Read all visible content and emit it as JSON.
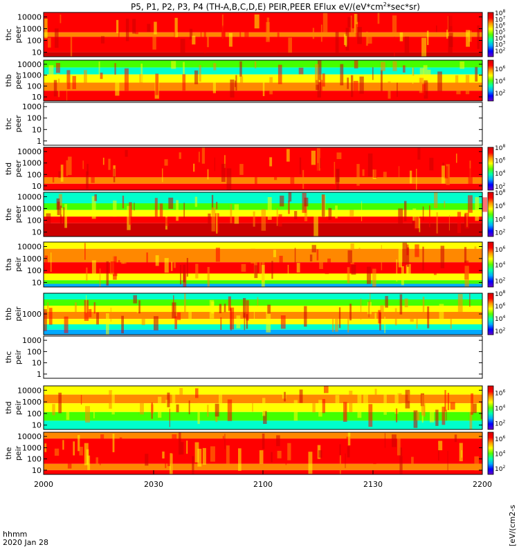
{
  "chart_data": {
    "type": "heatmap",
    "title": "P5, P1, P2, P3, P4 (TH-A,B,C,D,E) PEIR,PEER EFlux eV/(eV*cm^2*sec*sr)",
    "title_parts": [
      "P5, P1, P2, P3, P4 (TH-A,B,C,D,E) PEIR,PEER EFlux eV/(eV*cm",
      "2",
      "*sec*sr)"
    ],
    "x_ticks": [
      "2000",
      "2030",
      "2100",
      "2130",
      "2200"
    ],
    "x_label_line1": "hhmm",
    "x_label_line2": "2020 Jan 28",
    "colorbar_label": "[eV/(cm2-s",
    "colorbar_colors": [
      "#6a00c8",
      "#0000ff",
      "#00aaff",
      "#00ffaa",
      "#55ff00",
      "#ffff00",
      "#ff9900",
      "#ff0000",
      "#d40000"
    ],
    "panels": [
      {
        "label1": "thc",
        "label2": "peer",
        "yticks": [
          "10000",
          "1000",
          "100",
          "10"
        ],
        "empty": false,
        "colorbar": true,
        "cbar_ticks": [
          {
            "e": "8",
            "f": 0.0
          },
          {
            "e": "7",
            "f": 0.15
          },
          {
            "e": "6",
            "f": 0.29
          },
          {
            "e": "5",
            "f": 0.43
          },
          {
            "e": "4",
            "f": 0.57
          },
          {
            "e": "3",
            "f": 0.71
          },
          {
            "e": "2",
            "f": 0.86
          }
        ]
      },
      {
        "label1": "thb",
        "label2": "peer",
        "yticks": [
          "10000",
          "1000",
          "100",
          "10"
        ],
        "empty": false,
        "colorbar": true,
        "cbar_ticks": [
          {
            "e": "6",
            "f": 0.2
          },
          {
            "e": "4",
            "f": 0.5
          },
          {
            "e": "2",
            "f": 0.8
          }
        ]
      },
      {
        "label1": "thc",
        "label2": "peer",
        "yticks": [
          "1000",
          "100",
          "10",
          "1"
        ],
        "empty": true,
        "colorbar": false,
        "cbar_ticks": []
      },
      {
        "label1": "thd",
        "label2": "peer",
        "yticks": [
          "10000",
          "1000",
          "100",
          "10"
        ],
        "empty": false,
        "colorbar": true,
        "cbar_ticks": [
          {
            "e": "8",
            "f": 0.0
          },
          {
            "e": "6",
            "f": 0.3
          },
          {
            "e": "4",
            "f": 0.6
          },
          {
            "e": "2",
            "f": 0.9
          }
        ]
      },
      {
        "label1": "the",
        "label2": "peer",
        "yticks": [
          "10000",
          "1000",
          "100",
          "10"
        ],
        "empty": false,
        "colorbar": true,
        "cbar_ticks": [
          {
            "e": "8",
            "f": 0.0
          },
          {
            "e": "6",
            "f": 0.3
          },
          {
            "e": "4",
            "f": 0.6
          },
          {
            "e": "2",
            "f": 0.9
          }
        ]
      },
      {
        "label1": "tha",
        "label2": "peir",
        "yticks": [
          "10000",
          "1000",
          "100",
          "10"
        ],
        "empty": false,
        "colorbar": true,
        "cbar_ticks": [
          {
            "e": "6",
            "f": 0.15
          },
          {
            "e": "4",
            "f": 0.5
          },
          {
            "e": "2",
            "f": 0.85
          }
        ]
      },
      {
        "label1": "thb",
        "label2": "peir",
        "yticks": [
          "1000"
        ],
        "empty": false,
        "colorbar": true,
        "cbar_ticks": [
          {
            "e": "8",
            "f": 0.0
          },
          {
            "e": "6",
            "f": 0.3
          },
          {
            "e": "4",
            "f": 0.6
          },
          {
            "e": "2",
            "f": 0.9
          }
        ]
      },
      {
        "label1": "thc",
        "label2": "peir",
        "yticks": [
          "1000",
          "100",
          "10",
          "1"
        ],
        "empty": true,
        "colorbar": false,
        "cbar_ticks": []
      },
      {
        "label1": "thd",
        "label2": "peir",
        "yticks": [
          "10000",
          "1000",
          "100",
          "10"
        ],
        "empty": false,
        "colorbar": true,
        "cbar_ticks": [
          {
            "e": "6",
            "f": 0.15
          },
          {
            "e": "4",
            "f": 0.5
          },
          {
            "e": "2",
            "f": 0.85
          }
        ]
      },
      {
        "label1": "the",
        "label2": "peir",
        "yticks": [
          "10000",
          "1000",
          "100",
          "10"
        ],
        "empty": false,
        "colorbar": true,
        "cbar_ticks": [
          {
            "e": "6",
            "f": 0.15
          },
          {
            "e": "4",
            "f": 0.5
          },
          {
            "e": "2",
            "f": 0.85
          }
        ]
      }
    ]
  }
}
